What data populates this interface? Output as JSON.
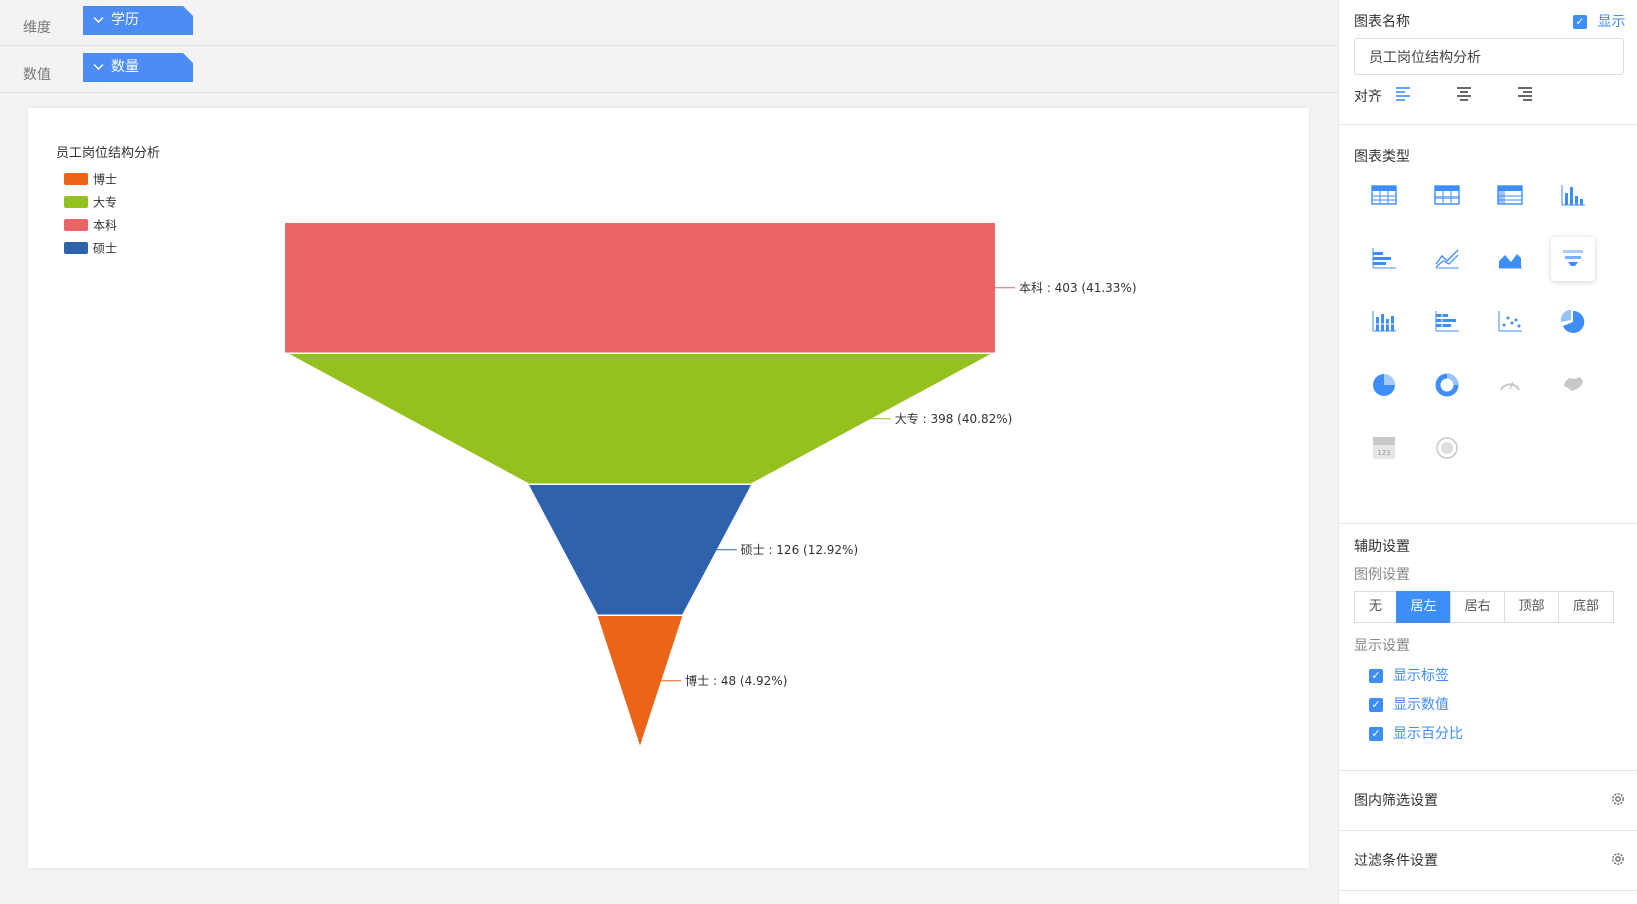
{
  "fields": {
    "dimension_label": "维度",
    "dimension_value": "学历",
    "value_label": "数值",
    "value_value": "数量"
  },
  "chart_data": {
    "type": "funnel",
    "title": "员工岗位结构分析",
    "legend": {
      "position": "top-left",
      "entries": [
        "博士",
        "大专",
        "本科",
        "硕士"
      ]
    },
    "colors": {
      "博士": "#ec6418",
      "大专": "#95c11f",
      "本科": "#ec6466",
      "硕士": "#2e62ad"
    },
    "series": [
      {
        "name": "本科",
        "value": 403,
        "percent": "41.33%",
        "label": "本科 : 403 (41.33%)"
      },
      {
        "name": "大专",
        "value": 398,
        "percent": "40.82%",
        "label": "大专 : 398 (40.82%)"
      },
      {
        "name": "硕士",
        "value": 126,
        "percent": "12.92%",
        "label": "硕士 : 126 (12.92%)"
      },
      {
        "name": "博士",
        "value": 48,
        "percent": "4.92%",
        "label": "博士 : 48 (4.92%)"
      }
    ]
  },
  "panel": {
    "chart_name_title": "图表名称",
    "show_label": "显示",
    "chart_name_value": "员工岗位结构分析",
    "align_label": "对齐",
    "chart_type_title": "图表类型",
    "chart_types": [
      "table",
      "cross-table",
      "detail-table",
      "column",
      "bar",
      "line",
      "area",
      "funnel",
      "stacked-column",
      "stacked-bar",
      "scatter",
      "pie",
      "pie-2",
      "ring",
      "gauge",
      "map",
      "kpi",
      "word-cloud"
    ],
    "active_chart_type": "funnel",
    "kpi_icon_text": "123",
    "aux_title": "辅助设置",
    "legend_settings_title": "图例设置",
    "legend_options": [
      "无",
      "居左",
      "居右",
      "顶部",
      "底部"
    ],
    "legend_active": "居左",
    "display_settings_title": "显示设置",
    "display_options": [
      "显示标签",
      "显示数值",
      "显示百分比"
    ],
    "inner_filter_title": "图内筛选设置",
    "filter_cond_title": "过滤条件设置",
    "accent": "#3d8ef8"
  }
}
